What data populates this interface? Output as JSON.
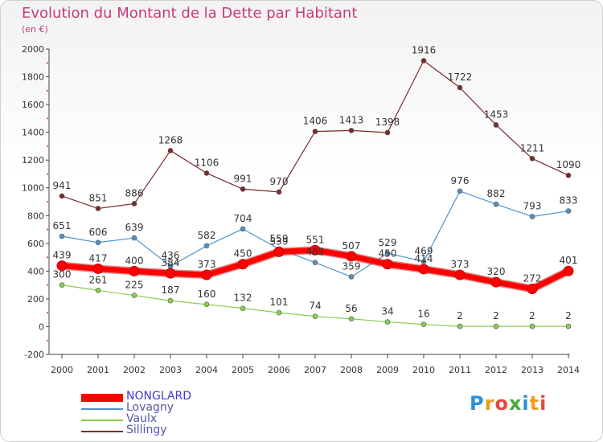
{
  "title": "Evolution du Montant de la Dette par Habitant",
  "unit_label": "(en €)",
  "brand": {
    "letters": [
      "P",
      "r",
      "o",
      "x",
      "i",
      "t",
      "i"
    ],
    "colors": [
      "#2a8fd8",
      "#f09a1a",
      "#e24b3a",
      "#44a83c",
      "#2a8fd8",
      "#f09a1a",
      "#e24b3a"
    ]
  },
  "chart_data": {
    "type": "line",
    "x": [
      "2000",
      "2001",
      "2002",
      "2003",
      "2004",
      "2005",
      "2006",
      "2007",
      "2008",
      "2009",
      "2010",
      "2011",
      "2012",
      "2013",
      "2014"
    ],
    "ylim": [
      -200,
      2000
    ],
    "yticks": [
      "-200",
      "0",
      "200",
      "400",
      "600",
      "800",
      "1000",
      "1200",
      "1400",
      "1600",
      "1800",
      "2000"
    ],
    "grid": false,
    "legend_position": "bottom-left",
    "series": [
      {
        "name": "NONGLARD",
        "color": "#ff0000",
        "values": [
          439,
          417,
          400,
          384,
          373,
          450,
          539,
          551,
          507,
          450,
          414,
          373,
          320,
          272,
          401
        ],
        "labels": [
          "439",
          "417",
          "400",
          "384",
          "373",
          "450",
          "539",
          "551",
          "507",
          "450",
          "414",
          "373",
          "320",
          "272",
          "401"
        ]
      },
      {
        "name": "Lovagny",
        "color": "#4f93c9",
        "values": [
          651,
          606,
          639,
          436,
          582,
          704,
          559,
          462,
          359,
          529,
          469,
          976,
          882,
          793,
          833
        ],
        "labels": [
          "651",
          "606",
          "639",
          "436",
          "582",
          "704",
          "559",
          "462",
          "359",
          "529",
          "469",
          "976",
          "882",
          "793",
          "833"
        ]
      },
      {
        "name": "Vaulx",
        "color": "#86cf4f",
        "values": [
          300,
          261,
          225,
          187,
          160,
          132,
          101,
          74,
          56,
          34,
          16,
          2,
          2,
          2,
          2
        ],
        "labels": [
          "300",
          "261",
          "225",
          "187",
          "160",
          "132",
          "101",
          "74",
          "56",
          "34",
          "16",
          "2",
          "2",
          "2",
          "2"
        ]
      },
      {
        "name": "Sillingy",
        "color": "#7a2a2a",
        "values": [
          941,
          851,
          886,
          1268,
          1106,
          991,
          970,
          1406,
          1413,
          1398,
          1916,
          1722,
          1453,
          1211,
          1090
        ],
        "labels": [
          "941",
          "851",
          "886",
          "1268",
          "1106",
          "991",
          "970",
          "1406",
          "1413",
          "1398",
          "1916",
          "1722",
          "1453",
          "1211",
          "1090"
        ]
      }
    ]
  }
}
